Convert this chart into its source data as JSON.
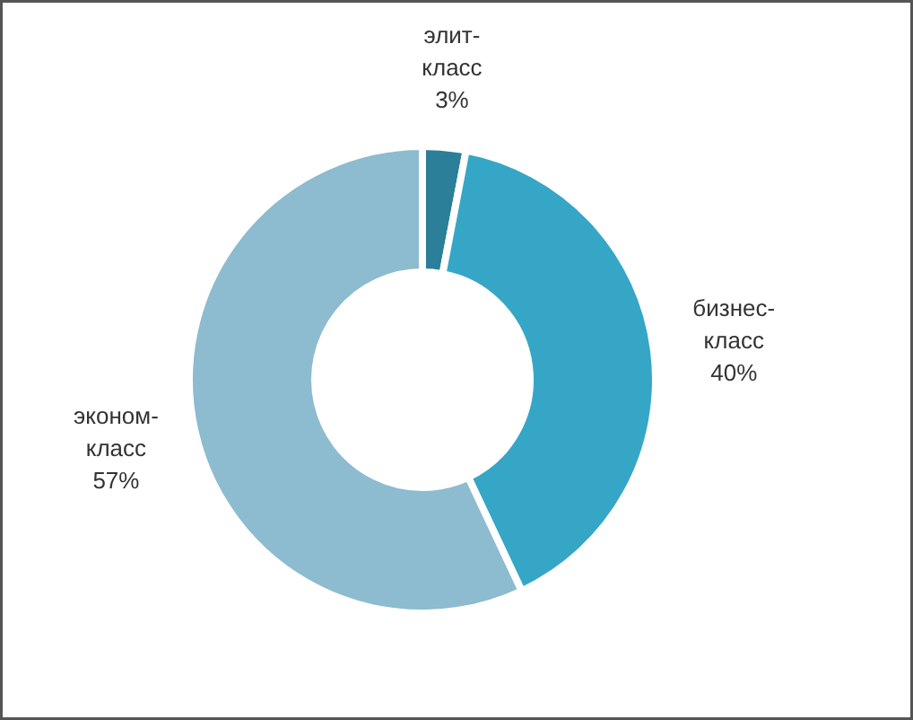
{
  "chart_data": {
    "type": "donut",
    "categories": [
      "элит-класс",
      "бизнес-класс",
      "эконом-класс"
    ],
    "values": [
      3,
      40,
      57
    ],
    "colors": [
      "#2b7f99",
      "#36a6c6",
      "#8dbbcf"
    ],
    "value_labels": [
      "3%",
      "40%",
      "57%"
    ]
  }
}
